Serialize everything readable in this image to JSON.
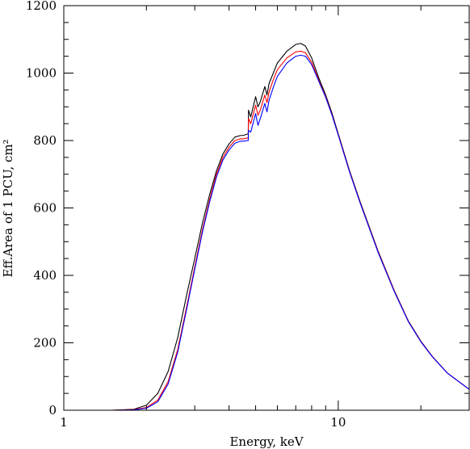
{
  "chart_data": {
    "type": "line",
    "xlabel": "Energy, keV",
    "ylabel": "Eff.Area of 1 PCU, cm²",
    "xscale": "log",
    "xlim": [
      1,
      30
    ],
    "ylim": [
      0,
      1200
    ],
    "x_ticks": [
      1,
      10
    ],
    "x_tick_labels": [
      "1",
      "10"
    ],
    "y_ticks": [
      0,
      200,
      400,
      600,
      800,
      1000,
      1200
    ],
    "y_tick_labels": [
      "0",
      "200",
      "400",
      "600",
      "800",
      "1000",
      "1200"
    ],
    "grid": false,
    "legend": "none",
    "series": [
      {
        "color": "#000000",
        "x": [
          1.5,
          1.8,
          2.0,
          2.2,
          2.4,
          2.6,
          2.8,
          3.0,
          3.2,
          3.4,
          3.6,
          3.8,
          4.0,
          4.2,
          4.4,
          4.5,
          4.7,
          4.71,
          4.8,
          5.0,
          5.1,
          5.2,
          5.4,
          5.5,
          5.6,
          5.8,
          6.0,
          6.5,
          7.0,
          7.3,
          7.6,
          8.0,
          8.5,
          9.0,
          9.5,
          10.0,
          11.0,
          12.0,
          14.0,
          16.0,
          18.0,
          20.0,
          22.0,
          25.0,
          28.0,
          30.0
        ],
        "y": [
          0,
          3,
          15,
          50,
          115,
          215,
          340,
          450,
          555,
          640,
          710,
          760,
          790,
          810,
          815,
          815,
          820,
          890,
          870,
          930,
          900,
          915,
          960,
          935,
          970,
          1000,
          1030,
          1065,
          1085,
          1088,
          1080,
          1045,
          985,
          935,
          880,
          820,
          710,
          620,
          470,
          355,
          265,
          205,
          160,
          110,
          80,
          62
        ]
      },
      {
        "color": "#ff0000",
        "x": [
          1.5,
          1.8,
          2.0,
          2.2,
          2.4,
          2.6,
          2.8,
          3.0,
          3.2,
          3.4,
          3.6,
          3.8,
          4.0,
          4.2,
          4.4,
          4.5,
          4.7,
          4.71,
          4.8,
          5.0,
          5.1,
          5.2,
          5.4,
          5.5,
          5.6,
          5.8,
          6.0,
          6.5,
          7.0,
          7.3,
          7.6,
          8.0,
          8.5,
          9.0,
          9.5,
          10.0,
          11.0,
          12.0,
          14.0,
          16.0,
          18.0,
          20.0,
          22.0,
          25.0,
          28.0,
          30.0
        ],
        "y": [
          0,
          2,
          8,
          30,
          85,
          180,
          305,
          425,
          535,
          625,
          700,
          750,
          780,
          800,
          805,
          805,
          808,
          865,
          850,
          905,
          875,
          890,
          935,
          912,
          945,
          980,
          1010,
          1045,
          1063,
          1065,
          1060,
          1032,
          978,
          930,
          876,
          818,
          708,
          618,
          468,
          354,
          264,
          204,
          160,
          110,
          80,
          62
        ]
      },
      {
        "color": "#0000ff",
        "x": [
          1.5,
          1.8,
          2.0,
          2.2,
          2.4,
          2.6,
          2.8,
          3.0,
          3.2,
          3.4,
          3.6,
          3.8,
          4.0,
          4.2,
          4.4,
          4.5,
          4.7,
          4.71,
          4.8,
          5.0,
          5.1,
          5.2,
          5.4,
          5.5,
          5.6,
          5.8,
          6.0,
          6.5,
          7.0,
          7.3,
          7.6,
          8.0,
          8.5,
          9.0,
          9.5,
          10.0,
          11.0,
          12.0,
          14.0,
          16.0,
          18.0,
          20.0,
          22.0,
          25.0,
          28.0,
          30.0
        ],
        "y": [
          0,
          1,
          6,
          25,
          78,
          172,
          298,
          418,
          528,
          618,
          692,
          742,
          772,
          792,
          798,
          798,
          800,
          830,
          825,
          880,
          845,
          865,
          910,
          885,
          920,
          958,
          990,
          1030,
          1050,
          1053,
          1050,
          1025,
          975,
          928,
          874,
          816,
          706,
          616,
          466,
          352,
          263,
          203,
          159,
          110,
          80,
          62
        ]
      }
    ]
  }
}
